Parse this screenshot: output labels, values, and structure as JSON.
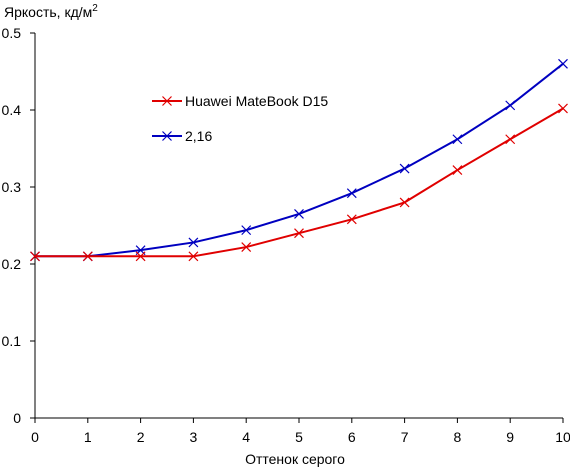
{
  "chart_data": {
    "type": "line",
    "title": "",
    "ylabel": "Яркость, кд/м",
    "ylabel_superscript": "2",
    "xlabel": "Оттенок серого",
    "x": [
      0,
      1,
      2,
      3,
      4,
      5,
      6,
      7,
      8,
      9,
      10
    ],
    "xlim": [
      0,
      10
    ],
    "ylim": [
      0,
      0.5
    ],
    "x_ticks": [
      "0",
      "1",
      "2",
      "3",
      "4",
      "5",
      "6",
      "7",
      "8",
      "9",
      "10"
    ],
    "y_ticks": [
      "0",
      "0.1",
      "0.2",
      "0.3",
      "0.4",
      "0.5"
    ],
    "y_tick_values": [
      0,
      0.1,
      0.2,
      0.3,
      0.4,
      0.5
    ],
    "grid": false,
    "legend_position": "top-left",
    "series": [
      {
        "name": "Huawei MateBook D15",
        "color": "#e00000",
        "marker": "x",
        "values": [
          0.21,
          0.21,
          0.21,
          0.21,
          0.222,
          0.24,
          0.258,
          0.28,
          0.322,
          0.362,
          0.402
        ]
      },
      {
        "name": "2,16",
        "color": "#0000c0",
        "marker": "x",
        "values": [
          0.21,
          0.21,
          0.218,
          0.228,
          0.244,
          0.265,
          0.292,
          0.324,
          0.362,
          0.406,
          0.46
        ]
      }
    ]
  }
}
